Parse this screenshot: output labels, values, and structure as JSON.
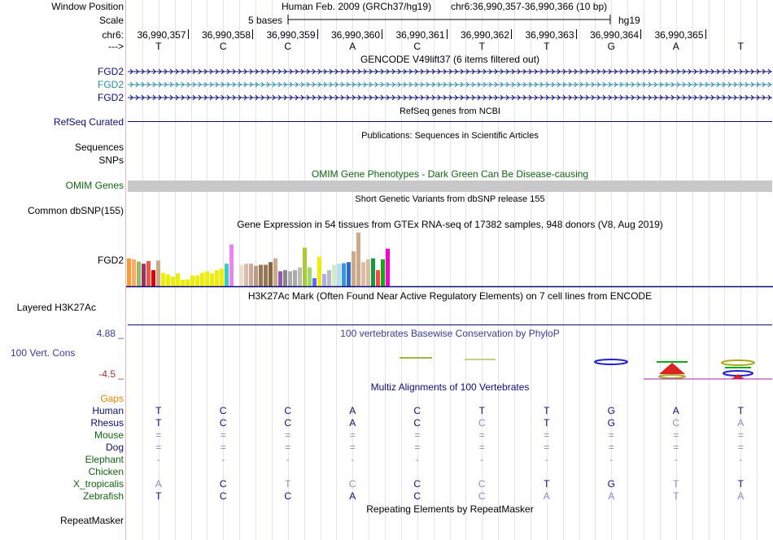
{
  "header": {
    "window_position_label": "Window Position",
    "assembly": "Human Feb. 2009 (GRCh37/hg19)",
    "position": "chr6:36,990,357-36,990,366 (10 bp)",
    "scale_label": "Scale",
    "scale_text": "5 bases",
    "scale_db": "hg19",
    "chrom_label": "chr6:",
    "strand_label": "--->",
    "coords": [
      "36,990,357",
      "36,990,358",
      "36,990,359",
      "36,990,360",
      "36,990,361",
      "36,990,362",
      "36,990,363",
      "36,990,364",
      "36,990,365"
    ],
    "bases": [
      "T",
      "C",
      "C",
      "A",
      "C",
      "T",
      "T",
      "G",
      "A",
      "T"
    ]
  },
  "gencode": {
    "title": "GENCODE V49lift37 (6 items filtered out)",
    "items": [
      {
        "name": "FGD2",
        "color": "#0c0c78"
      },
      {
        "name": "FGD2",
        "color": "#2a8aa8"
      },
      {
        "name": "FGD2",
        "color": "#0c0c78"
      }
    ]
  },
  "refseq": {
    "title": "RefSeq genes from NCBI",
    "label": "RefSeq Curated",
    "color": "#0c0c78"
  },
  "publications": {
    "title": "Publications: Sequences in Scientific Articles",
    "sequences_label": "Sequences",
    "snps_label": "SNPs"
  },
  "omim": {
    "title": "OMIM Gene Phenotypes - Dark Green Can Be Disease-causing",
    "label": "OMIM Genes",
    "color": "#116611"
  },
  "dbsnp": {
    "title": "Short Genetic Variants from dbSNP release 155",
    "label": "Common dbSNP(155)"
  },
  "gtex": {
    "title": "Gene Expression in 54 tissues from GTEx RNA-seq of 17382 samples, 948 donors (V8, Aug 2019)",
    "label": "FGD2",
    "bars": [
      {
        "v": 0.52,
        "c": "#ff9933"
      },
      {
        "v": 0.5,
        "c": "#ffaa66"
      },
      {
        "v": 0.46,
        "c": "#99bb66"
      },
      {
        "v": 0.42,
        "c": "#993366"
      },
      {
        "v": 0.47,
        "c": "#ee5544"
      },
      {
        "v": 0.3,
        "c": "#dd0000"
      },
      {
        "v": 0.48,
        "c": "#ccaa88"
      },
      {
        "v": 0.25,
        "c": "#eeee00"
      },
      {
        "v": 0.22,
        "c": "#eeee00"
      },
      {
        "v": 0.18,
        "c": "#eeee00"
      },
      {
        "v": 0.24,
        "c": "#eeee00"
      },
      {
        "v": 0.12,
        "c": "#eeee00"
      },
      {
        "v": 0.13,
        "c": "#eeee00"
      },
      {
        "v": 0.2,
        "c": "#eeee00"
      },
      {
        "v": 0.2,
        "c": "#eeee00"
      },
      {
        "v": 0.25,
        "c": "#eeee00"
      },
      {
        "v": 0.28,
        "c": "#eeee00"
      },
      {
        "v": 0.24,
        "c": "#eeee00"
      },
      {
        "v": 0.3,
        "c": "#eeee00"
      },
      {
        "v": 0.33,
        "c": "#eeee00"
      },
      {
        "v": 0.42,
        "c": "#33cccc"
      },
      {
        "v": 0.78,
        "c": "#ee82ee"
      },
      {
        "v": 0.0,
        "c": "#ffffff"
      },
      {
        "v": 0.4,
        "c": "#eeddcc"
      },
      {
        "v": 0.42,
        "c": "#ddbbaa"
      },
      {
        "v": 0.42,
        "c": "#ccaa99"
      },
      {
        "v": 0.38,
        "c": "#bb9988"
      },
      {
        "v": 0.4,
        "c": "#997755"
      },
      {
        "v": 0.4,
        "c": "#997755"
      },
      {
        "v": 0.45,
        "c": "#886644"
      },
      {
        "v": 0.52,
        "c": "#ccaa88"
      },
      {
        "v": 0.28,
        "c": "#9955bb"
      },
      {
        "v": 0.3,
        "c": "#888888"
      },
      {
        "v": 0.28,
        "c": "#aaaaaa"
      },
      {
        "v": 0.3,
        "c": "#aaaaaa"
      },
      {
        "v": 0.35,
        "c": "#bbbbbb"
      },
      {
        "v": 0.72,
        "c": "#aacc33"
      },
      {
        "v": 0.35,
        "c": "#99dd66"
      },
      {
        "v": 0.15,
        "c": "#6666ff"
      },
      {
        "v": 0.55,
        "c": "#eeee00"
      },
      {
        "v": 0.23,
        "c": "#aaaaff"
      },
      {
        "v": 0.3,
        "c": "#bbbbbb"
      },
      {
        "v": 0.4,
        "c": "#cceecc"
      },
      {
        "v": 0.42,
        "c": "#bbddee"
      },
      {
        "v": 0.43,
        "c": "#3399dd"
      },
      {
        "v": 0.45,
        "c": "#3366cc"
      },
      {
        "v": 0.65,
        "c": "#ccaa88"
      },
      {
        "v": 1.0,
        "c": "#ccaa88"
      },
      {
        "v": 0.45,
        "c": "#ddbbaa"
      },
      {
        "v": 0.5,
        "c": "#ddbb99"
      },
      {
        "v": 0.52,
        "c": "#119944"
      },
      {
        "v": 0.3,
        "c": "#ff4444"
      },
      {
        "v": 0.5,
        "c": "#11aa11"
      },
      {
        "v": 0.7,
        "c": "#ff00cc"
      }
    ]
  },
  "h3k27ac": {
    "title": "H3K27Ac Mark (Often Found Near Active Regulatory Elements) on 7 cell lines from ENCODE",
    "label": "Layered H3K27Ac"
  },
  "phylop": {
    "title": "100 vertebrates Basewise Conservation by PhyloP",
    "label": "100 Vert. Cons",
    "max": "4.88 _",
    "min": "-4.5 _",
    "max_color": "#3a3a9a",
    "min_color": "#aa3333"
  },
  "multiz": {
    "title": "Multiz Alignments of 100 Vertebrates",
    "gaps_label": "Gaps",
    "species": [
      {
        "name": "Human",
        "color": "#0c0c78",
        "seq": [
          "T",
          "C",
          "C",
          "A",
          "C",
          "T",
          "T",
          "G",
          "A",
          "T"
        ]
      },
      {
        "name": "Rhesus",
        "color": "#0c0c78",
        "seq": [
          "T",
          "C",
          "C",
          "A",
          "C",
          "C",
          "T",
          "G",
          "C",
          "A"
        ]
      },
      {
        "name": "Mouse",
        "color": "#116611",
        "seq": [
          "=",
          "=",
          "=",
          "=",
          "=",
          "=",
          "=",
          "=",
          "=",
          "="
        ]
      },
      {
        "name": "Dog",
        "color": "#0c0c78",
        "seq": [
          "=",
          "=",
          "=",
          "=",
          "=",
          "=",
          "=",
          "=",
          "=",
          "="
        ]
      },
      {
        "name": "Elephant",
        "color": "#116611",
        "seq": [
          "-",
          "-",
          "-",
          "-",
          "-",
          "-",
          "-",
          "-",
          "-",
          "-"
        ]
      },
      {
        "name": "Chicken",
        "color": "#116611",
        "seq": [
          "",
          "",
          "",
          "",
          "",
          "",
          "",
          "",
          "",
          ""
        ]
      },
      {
        "name": "X_tropicalis",
        "color": "#116611",
        "seq": [
          "A",
          "C",
          "T",
          "C",
          "C",
          "C",
          "T",
          "G",
          "T",
          "T"
        ]
      },
      {
        "name": "Zebrafish",
        "color": "#116611",
        "seq": [
          "T",
          "C",
          "C",
          "A",
          "C",
          "C",
          "A",
          "A",
          "T",
          "A"
        ]
      }
    ],
    "faded": [
      [
        false,
        false,
        false,
        false,
        false,
        false,
        false,
        false,
        false,
        false
      ],
      [
        false,
        false,
        false,
        false,
        false,
        true,
        false,
        false,
        true,
        true
      ],
      [
        true,
        true,
        true,
        true,
        true,
        true,
        true,
        true,
        true,
        true
      ],
      [
        true,
        true,
        true,
        true,
        true,
        true,
        true,
        true,
        true,
        true
      ],
      [
        true,
        true,
        true,
        true,
        true,
        true,
        true,
        true,
        true,
        true
      ],
      [
        true,
        true,
        true,
        true,
        true,
        true,
        true,
        true,
        true,
        true
      ],
      [
        true,
        false,
        true,
        true,
        false,
        true,
        false,
        false,
        true,
        false
      ],
      [
        false,
        false,
        false,
        false,
        false,
        true,
        true,
        true,
        true,
        true
      ]
    ]
  },
  "repeatmasker": {
    "title": "Repeating Elements by RepeatMasker",
    "label": "RepeatMasker"
  }
}
